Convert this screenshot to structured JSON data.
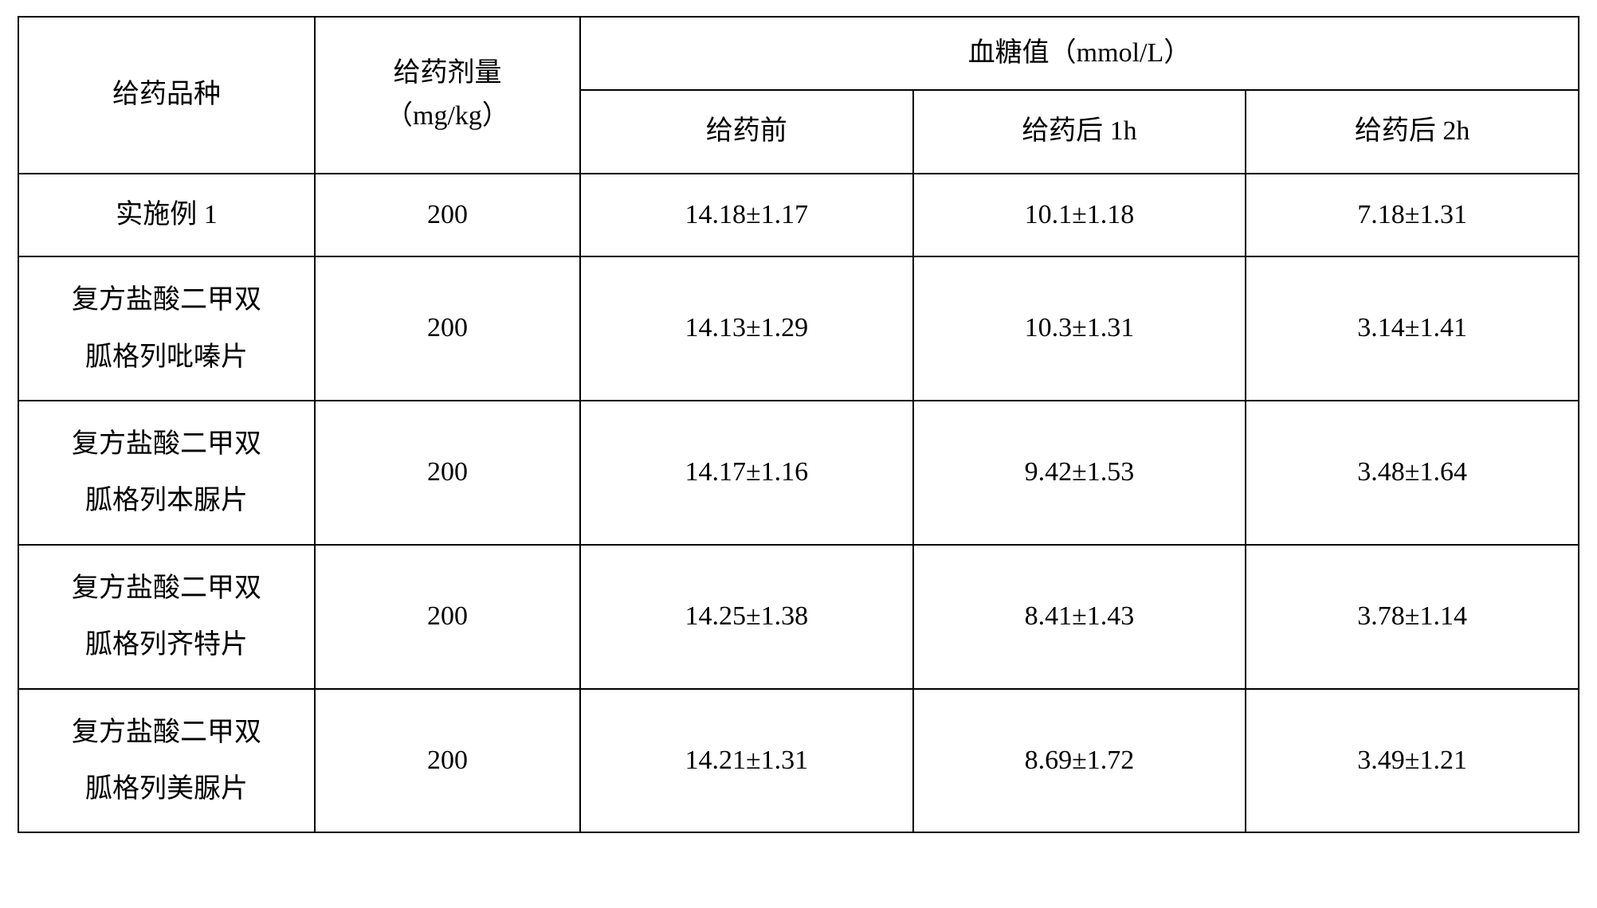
{
  "table": {
    "headers": {
      "drug_type": "给药品种",
      "dose": "给药剂量\n（mg/kg）",
      "glucose_group": "血糖值（mmol/L）",
      "before": "给药前",
      "after_1h": "给药后 1h",
      "after_2h": "给药后 2h"
    },
    "rows": [
      {
        "drug": "实施例 1",
        "dose": "200",
        "before": "14.18±1.17",
        "after_1h": "10.1±1.18",
        "after_2h": "7.18±1.31",
        "multiline": false
      },
      {
        "drug": "复方盐酸二甲双\n胍格列吡嗪片",
        "dose": "200",
        "before": "14.13±1.29",
        "after_1h": "10.3±1.31",
        "after_2h": "3.14±1.41",
        "multiline": true
      },
      {
        "drug": "复方盐酸二甲双\n胍格列本脲片",
        "dose": "200",
        "before": "14.17±1.16",
        "after_1h": "9.42±1.53",
        "after_2h": "3.48±1.64",
        "multiline": true
      },
      {
        "drug": "复方盐酸二甲双\n胍格列齐特片",
        "dose": "200",
        "before": "14.25±1.38",
        "after_1h": "8.41±1.43",
        "after_2h": "3.78±1.14",
        "multiline": true
      },
      {
        "drug": "复方盐酸二甲双\n胍格列美脲片",
        "dose": "200",
        "before": "14.21±1.31",
        "after_1h": "8.69±1.72",
        "after_2h": "3.49±1.21",
        "multiline": true
      }
    ],
    "styling": {
      "border_color": "#000000",
      "border_width": 2,
      "background_color": "#ffffff",
      "text_color": "#000000",
      "font_size_pt": 26,
      "font_family": "SimSun",
      "cell_padding_v": 24,
      "cell_padding_h": 12,
      "column_widths_pct": [
        19,
        17,
        21.33,
        21.33,
        21.33
      ]
    }
  }
}
